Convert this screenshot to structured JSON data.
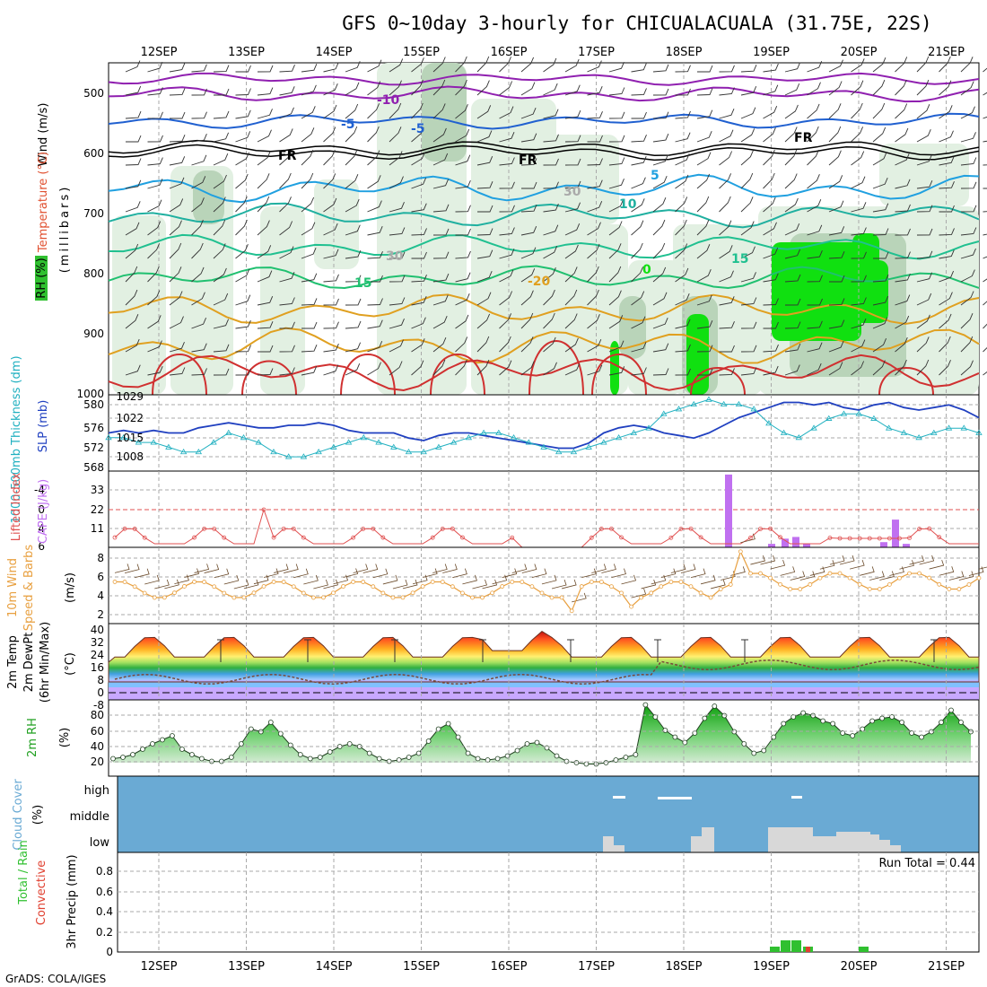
{
  "title": "GFS 0~10day 3-hourly for CHICUALACUALA (31.75E, 22S)",
  "footer": "GrADS: COLA/IGES",
  "colors": {
    "grid": "#aaaaaa",
    "temp_hot": "#d03030",
    "temp_warm": "#e0a020",
    "temp_cool": "#20b090",
    "temp_cold": "#2060d0",
    "temp_vcold": "#9020b0",
    "freezing": "#000000",
    "rh": "#20c020",
    "slp": "#2040c0",
    "thickness": "#20b0c0",
    "lifted": "#e05050",
    "cape": "#c070f0",
    "wind": "#e8a040",
    "cloud": "#6aaad4",
    "precip_total": "#30c030",
    "precip_conv": "#e04030"
  },
  "days": [
    "12SEP",
    "13SEP",
    "14SEP",
    "15SEP",
    "16SEP",
    "17SEP",
    "18SEP",
    "19SEP",
    "20SEP",
    "21SEP"
  ],
  "panels": {
    "upper": {
      "ylabel_wind": "Wind (m/s)",
      "ylabel_temp": "Temperature (°C)",
      "ylabel_rh": "RH (%)",
      "ylabel_units": "(millibars)",
      "y_ticks": [
        "500",
        "600",
        "700",
        "800",
        "900",
        "1000"
      ],
      "isotherm_labels": [
        "-10",
        "-5",
        "-5",
        "FR",
        "FR",
        "FR",
        "5",
        "10",
        "15",
        "15",
        "-20",
        "0",
        "30",
        "30"
      ]
    },
    "slp": {
      "ylabel_thick": "1000-500mb Thickness (dm)",
      "ylabel_slp": "SLP (mb)",
      "left_ticks": [
        "580",
        "576",
        "572",
        "568"
      ],
      "right_ticks": [
        "1029",
        "1022",
        "1015",
        "1008"
      ]
    },
    "li": {
      "ylabel_li": "Lifted Index",
      "ylabel_cape": "CAPE (J/kg)",
      "left_ticks": [
        "-4",
        "0",
        "4",
        "6"
      ],
      "cape_ticks": [
        "33",
        "22",
        "11"
      ]
    },
    "wind10": {
      "ylabel1": "10m Wind",
      "ylabel2": "Speed & Barbs",
      "ylabel_units": "(m/s)",
      "y_ticks": [
        "8",
        "6",
        "4",
        "2"
      ]
    },
    "temp2m": {
      "ylabel1": "2m Temp",
      "ylabel2": "2m DewPt",
      "ylabel3": "(6hr Min/Max)",
      "ylabel_units": "(°C)",
      "y_ticks": [
        "40",
        "32",
        "24",
        "16",
        "8",
        "0",
        "-8"
      ]
    },
    "rh2m": {
      "ylabel": "2m RH",
      "ylabel_units": "(%)",
      "y_ticks": [
        "80",
        "60",
        "40",
        "20"
      ]
    },
    "cloud": {
      "ylabel1": "Cloud Cover",
      "ylabel2": "(%)",
      "levels": [
        "high",
        "middle",
        "low"
      ]
    },
    "precip": {
      "ylabel1": "Total / Rain",
      "ylabel2": "Convective",
      "ylabel3": "3hr Precip (mm)",
      "y_ticks": [
        "0.8",
        "0.6",
        "0.4",
        "0.2",
        "0"
      ],
      "run_total": "Run Total = 0.44"
    }
  },
  "chart_data": [
    {
      "type": "line",
      "name": "2m RH",
      "ylabel": "%",
      "ylim": [
        0,
        100
      ],
      "values": [
        18,
        20,
        24,
        32,
        40,
        46,
        52,
        32,
        24,
        18,
        14,
        14,
        20,
        40,
        62,
        58,
        72,
        55,
        38,
        24,
        18,
        20,
        28,
        36,
        40,
        36,
        26,
        18,
        14,
        16,
        20,
        26,
        44,
        62,
        70,
        50,
        26,
        18,
        16,
        18,
        22,
        30,
        40,
        42,
        34,
        22,
        14,
        12,
        10,
        10,
        12,
        16,
        20,
        24,
        98,
        80,
        60,
        50,
        42,
        56,
        78,
        96,
        82,
        58,
        40,
        26,
        30,
        50,
        70,
        80,
        86,
        82,
        74,
        70,
        56,
        52,
        62,
        74,
        78,
        80,
        72,
        56,
        50,
        58,
        72,
        90,
        72,
        58
      ]
    },
    {
      "type": "bar",
      "name": "3hr Precip",
      "ylabel": "mm",
      "ylim": [
        0,
        1.0
      ],
      "x": [
        "19SEP 00",
        "19SEP 03",
        "19SEP 06",
        "19SEP 09",
        "19SEP 12",
        "20SEP 00"
      ],
      "total": [
        0.06,
        0.13,
        0.13,
        0.06,
        0.0,
        0.06
      ],
      "convective": [
        0.0,
        0.0,
        0.0,
        0.06,
        0.0,
        0.0
      ]
    },
    {
      "type": "bar",
      "name": "CAPE",
      "ylabel": "J/kg",
      "ylim": [
        0,
        44
      ],
      "x": [
        "18SEP 12",
        "19SEP 00",
        "19SEP 03",
        "19SEP 06",
        "19SEP 09",
        "20SEP 03",
        "20SEP 06",
        "20SEP 09"
      ],
      "values": [
        42,
        2,
        5,
        6,
        2,
        3,
        16,
        2
      ]
    },
    {
      "type": "line",
      "name": "SLP / Thickness",
      "series": [
        {
          "name": "SLP (mb)",
          "values": [
            1016,
            1017,
            1016,
            1017,
            1016,
            1016,
            1018,
            1019,
            1020,
            1019,
            1018,
            1018,
            1019,
            1019,
            1020,
            1019,
            1017,
            1016,
            1016,
            1016,
            1014,
            1013,
            1015,
            1016,
            1016,
            1015,
            1014,
            1013,
            1012,
            1011,
            1010,
            1010,
            1012,
            1016,
            1018,
            1019,
            1018,
            1016,
            1015,
            1014,
            1016,
            1019,
            1022,
            1024,
            1026,
            1028,
            1028,
            1027,
            1028,
            1026,
            1025,
            1027,
            1028,
            1026,
            1025,
            1026,
            1027,
            1025,
            1022
          ]
        },
        {
          "name": "Thickness (dm)",
          "values": [
            573,
            573,
            572,
            572,
            571,
            570,
            570,
            572,
            574,
            573,
            572,
            570,
            569,
            569,
            570,
            571,
            572,
            573,
            572,
            571,
            570,
            570,
            571,
            572,
            573,
            574,
            574,
            573,
            572,
            571,
            570,
            570,
            571,
            572,
            573,
            574,
            575,
            578,
            579,
            580,
            581,
            580,
            580,
            579,
            576,
            574,
            573,
            575,
            577,
            578,
            578,
            577,
            575,
            574,
            573,
            574,
            575,
            575,
            574
          ]
        }
      ]
    }
  ]
}
